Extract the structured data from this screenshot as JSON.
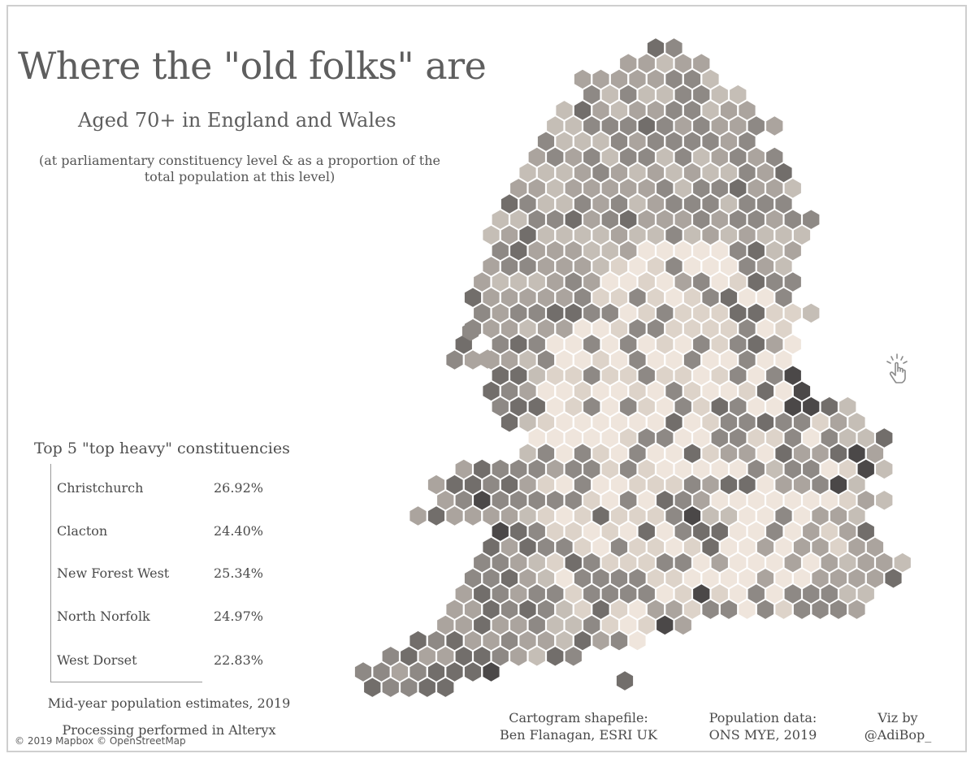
{
  "title": "Where the \"old folks\" are",
  "subtitle": "Aged 70+ in England and Wales",
  "note": "(at parliamentary constituency level & as a proportion of the total population at this level)",
  "top5": {
    "heading": "Top 5 \"top heavy\" constituencies",
    "rows": [
      {
        "name": "Christchurch",
        "value": "26.92%"
      },
      {
        "name": "Clacton",
        "value": "24.40%"
      },
      {
        "name": "New Forest West",
        "value": "25.34%"
      },
      {
        "name": "North Norfolk",
        "value": "24.97%"
      },
      {
        "name": "West Dorset",
        "value": "22.83%"
      }
    ]
  },
  "sources": {
    "mid_year": "Mid-year population estimates, 2019",
    "processing": "Processing performed in Alteryx",
    "cartogram_line1": "Cartogram shapefile:",
    "cartogram_line2": "Ben Flanagan, ESRI UK",
    "population_line1": "Population data:",
    "population_line2": "ONS MYE, 2019",
    "viz_line1": "Viz by",
    "viz_line2": "@AdiBop_"
  },
  "attribution": "© 2019 Mapbox © OpenStreetMap",
  "icons": {
    "interaction_hint": "tap-hand-icon"
  },
  "map": {
    "type": "hexagonal cartogram of parliamentary constituencies",
    "palette_light_to_dark": [
      "#efe5dc",
      "#ddd3c9",
      "#c5beb6",
      "#aba49e",
      "#8e8985",
      "#726e6b",
      "#4b4848"
    ]
  }
}
